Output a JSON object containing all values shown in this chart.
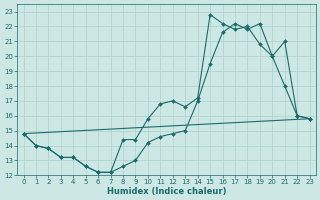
{
  "xlabel": "Humidex (Indice chaleur)",
  "background_color": "#cde8e4",
  "grid_color": "#b0d4ce",
  "line_color": "#1a6b6b",
  "xlim": [
    -0.5,
    23.5
  ],
  "ylim": [
    12,
    23.5
  ],
  "xticks": [
    0,
    1,
    2,
    3,
    4,
    5,
    6,
    7,
    8,
    9,
    10,
    11,
    12,
    13,
    14,
    15,
    16,
    17,
    18,
    19,
    20,
    21,
    22,
    23
  ],
  "yticks": [
    12,
    13,
    14,
    15,
    16,
    17,
    18,
    19,
    20,
    21,
    22,
    23
  ],
  "line1_x": [
    0,
    1,
    2,
    3,
    4,
    5,
    6,
    7,
    8,
    9,
    10,
    11,
    12,
    13,
    14,
    15,
    16,
    17,
    18,
    19,
    20,
    21,
    22,
    23
  ],
  "line1_y": [
    14.8,
    14.0,
    13.8,
    13.2,
    13.2,
    12.6,
    12.2,
    12.2,
    12.6,
    13.0,
    14.2,
    14.6,
    14.8,
    15.0,
    17.0,
    19.5,
    21.6,
    22.2,
    21.8,
    22.2,
    20.0,
    21.0,
    16.0,
    15.8
  ],
  "line2_x": [
    0,
    1,
    2,
    3,
    4,
    5,
    6,
    7,
    8,
    9,
    10,
    11,
    12,
    13,
    14,
    15,
    16,
    17,
    18,
    19,
    20,
    21,
    22,
    23
  ],
  "line2_y": [
    14.8,
    14.0,
    13.8,
    13.2,
    13.2,
    12.6,
    12.2,
    12.2,
    14.4,
    14.4,
    15.8,
    16.8,
    17.0,
    16.6,
    17.2,
    22.8,
    22.2,
    21.8,
    22.0,
    20.8,
    20.0,
    18.0,
    16.0,
    15.8
  ],
  "line3_x": [
    0,
    23
  ],
  "line3_y": [
    14.8,
    15.8
  ]
}
